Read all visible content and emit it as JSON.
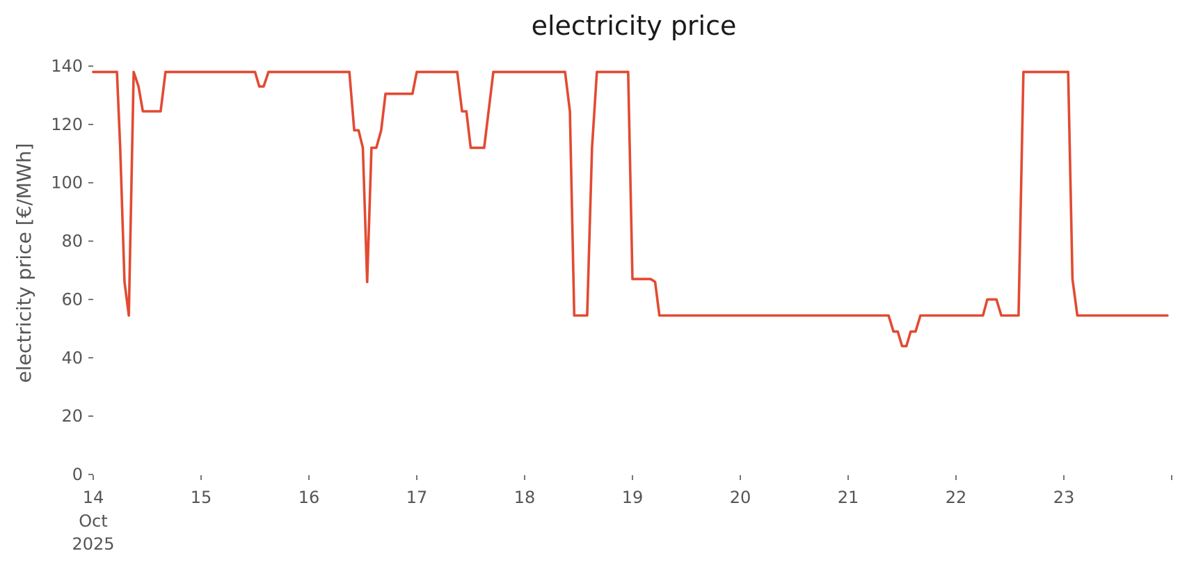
{
  "chart_data": {
    "type": "line",
    "title": "electricity price",
    "ylabel": "electricity price [€/MWh]",
    "xlabel": "",
    "ylim": [
      0,
      140
    ],
    "y_ticks": [
      0,
      20,
      40,
      60,
      80,
      100,
      120,
      140
    ],
    "xlim_days": [
      14,
      24
    ],
    "x_ticks": [
      {
        "day": 14,
        "label": "14",
        "sublabels": [
          "Oct",
          "2025"
        ]
      },
      {
        "day": 15,
        "label": "15"
      },
      {
        "day": 16,
        "label": "16"
      },
      {
        "day": 17,
        "label": "17"
      },
      {
        "day": 18,
        "label": "18"
      },
      {
        "day": 19,
        "label": "19"
      },
      {
        "day": 20,
        "label": "20"
      },
      {
        "day": 21,
        "label": "21"
      },
      {
        "day": 22,
        "label": "22"
      },
      {
        "day": 23,
        "label": "23"
      },
      {
        "day": 24,
        "label": ""
      }
    ],
    "grid": false,
    "color": "#E24A33",
    "series": [
      {
        "points": [
          [
            14.0,
            138
          ],
          [
            14.22,
            138
          ],
          [
            14.25,
            112
          ],
          [
            14.29,
            66
          ],
          [
            14.33,
            54.5
          ],
          [
            14.375,
            138
          ],
          [
            14.42,
            133
          ],
          [
            14.46,
            124.5
          ],
          [
            14.625,
            124.5
          ],
          [
            14.67,
            138
          ],
          [
            15.5,
            138
          ],
          [
            15.54,
            133
          ],
          [
            15.58,
            133
          ],
          [
            15.625,
            138
          ],
          [
            16.375,
            138
          ],
          [
            16.42,
            118
          ],
          [
            16.46,
            118
          ],
          [
            16.5,
            112
          ],
          [
            16.54,
            66
          ],
          [
            16.58,
            112
          ],
          [
            16.625,
            112
          ],
          [
            16.67,
            118
          ],
          [
            16.71,
            130.5
          ],
          [
            16.96,
            130.5
          ],
          [
            17.0,
            138
          ],
          [
            17.375,
            138
          ],
          [
            17.42,
            124.5
          ],
          [
            17.46,
            124.5
          ],
          [
            17.5,
            112
          ],
          [
            17.625,
            112
          ],
          [
            17.71,
            138
          ],
          [
            18.375,
            138
          ],
          [
            18.42,
            124.5
          ],
          [
            18.46,
            54.5
          ],
          [
            18.58,
            54.5
          ],
          [
            18.625,
            112
          ],
          [
            18.67,
            138
          ],
          [
            18.96,
            138
          ],
          [
            19.0,
            67
          ],
          [
            19.17,
            67
          ],
          [
            19.21,
            66
          ],
          [
            19.25,
            54.5
          ],
          [
            21.375,
            54.5
          ],
          [
            21.42,
            49
          ],
          [
            21.46,
            49
          ],
          [
            21.5,
            44
          ],
          [
            21.54,
            44
          ],
          [
            21.58,
            49
          ],
          [
            21.625,
            49
          ],
          [
            21.67,
            54.5
          ],
          [
            22.25,
            54.5
          ],
          [
            22.29,
            60
          ],
          [
            22.375,
            60
          ],
          [
            22.42,
            54.5
          ],
          [
            22.58,
            54.5
          ],
          [
            22.625,
            138
          ],
          [
            23.04,
            138
          ],
          [
            23.08,
            67
          ],
          [
            23.125,
            54.5
          ],
          [
            23.96,
            54.5
          ]
        ]
      }
    ]
  }
}
